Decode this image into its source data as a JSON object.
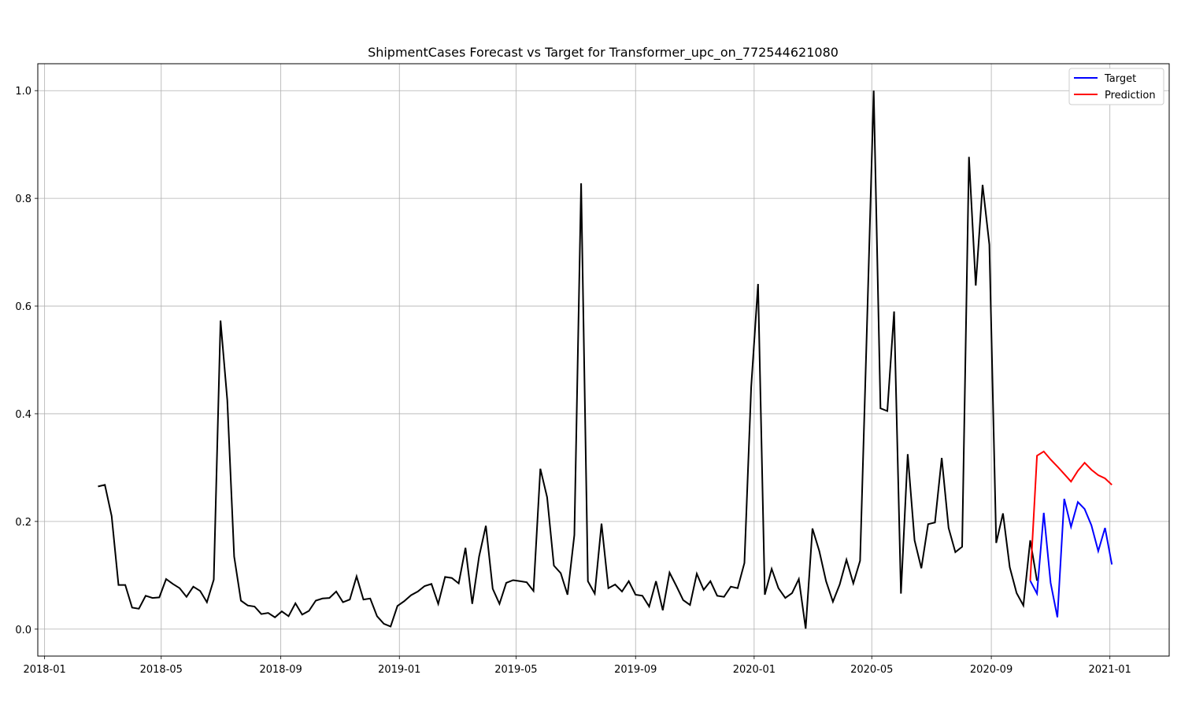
{
  "chart_data": {
    "type": "line",
    "title": "ShipmentCases Forecast vs Target for Transformer_upc_on_772544621080",
    "xlabel": "",
    "ylabel": "",
    "x_ticks": [
      "2018-01",
      "2018-05",
      "2018-09",
      "2019-01",
      "2019-05",
      "2019-09",
      "2020-01",
      "2020-05",
      "2020-09",
      "2021-01"
    ],
    "y_ticks": [
      "0.0",
      "0.2",
      "0.4",
      "0.6",
      "0.8",
      "1.0"
    ],
    "xlim": [
      "2017-12-25",
      "2021-03-03"
    ],
    "ylim": [
      -0.05,
      1.05
    ],
    "grid": true,
    "legend_position": "top-right",
    "series": [
      {
        "color": "#000000",
        "start": "2018-02-25",
        "step_days": 7,
        "values": [
          0.265,
          0.268,
          0.21,
          0.082,
          0.082,
          0.04,
          0.038,
          0.062,
          0.058,
          0.059,
          0.093,
          0.084,
          0.076,
          0.06,
          0.079,
          0.071,
          0.05,
          0.092,
          0.573,
          0.425,
          0.135,
          0.053,
          0.044,
          0.042,
          0.028,
          0.03,
          0.022,
          0.033,
          0.024,
          0.048,
          0.027,
          0.034,
          0.053,
          0.057,
          0.058,
          0.07,
          0.05,
          0.055,
          0.098,
          0.055,
          0.057,
          0.024,
          0.01,
          0.005,
          0.043,
          0.052,
          0.063,
          0.07,
          0.08,
          0.084,
          0.047,
          0.097,
          0.095,
          0.085,
          0.151,
          0.047,
          0.135,
          0.192,
          0.075,
          0.047,
          0.086,
          0.091,
          0.089,
          0.087,
          0.071,
          0.298,
          0.245,
          0.118,
          0.104,
          0.064,
          0.175,
          0.828,
          0.089,
          0.066,
          0.196,
          0.076,
          0.083,
          0.07,
          0.089,
          0.064,
          0.062,
          0.042,
          0.089,
          0.035,
          0.105,
          0.08,
          0.054,
          0.045,
          0.103,
          0.073,
          0.089,
          0.062,
          0.06,
          0.079,
          0.076,
          0.123,
          0.45,
          0.641,
          0.064,
          0.112,
          0.076,
          0.058,
          0.067,
          0.093,
          0.001,
          0.187,
          0.145,
          0.089,
          0.051,
          0.083,
          0.129,
          0.085,
          0.127,
          0.56,
          1.0,
          0.41,
          0.405,
          0.59,
          0.066,
          0.325,
          0.165,
          0.113,
          0.195,
          0.198,
          0.318,
          0.188,
          0.143,
          0.153,
          0.877,
          0.638,
          0.825,
          0.714,
          0.16,
          0.215,
          0.115,
          0.067,
          0.044,
          0.165,
          0.09
        ]
      },
      {
        "name": "Target",
        "color": "#0000ff",
        "start": "2020-10-11",
        "step_days": 7,
        "values": [
          0.09,
          0.066,
          0.216,
          0.086,
          0.022,
          0.242,
          0.19,
          0.236,
          0.223,
          0.193,
          0.145,
          0.188,
          0.12
        ]
      },
      {
        "name": "Prediction",
        "color": "#ff0000",
        "start": "2020-10-11",
        "step_days": 7,
        "values": [
          0.09,
          0.322,
          0.33,
          0.315,
          0.302,
          0.288,
          0.274,
          0.294,
          0.309,
          0.296,
          0.286,
          0.28,
          0.268
        ]
      }
    ],
    "colors": {
      "grid": "#b0b0b0",
      "axis": "#000000",
      "background": "#ffffff"
    }
  }
}
